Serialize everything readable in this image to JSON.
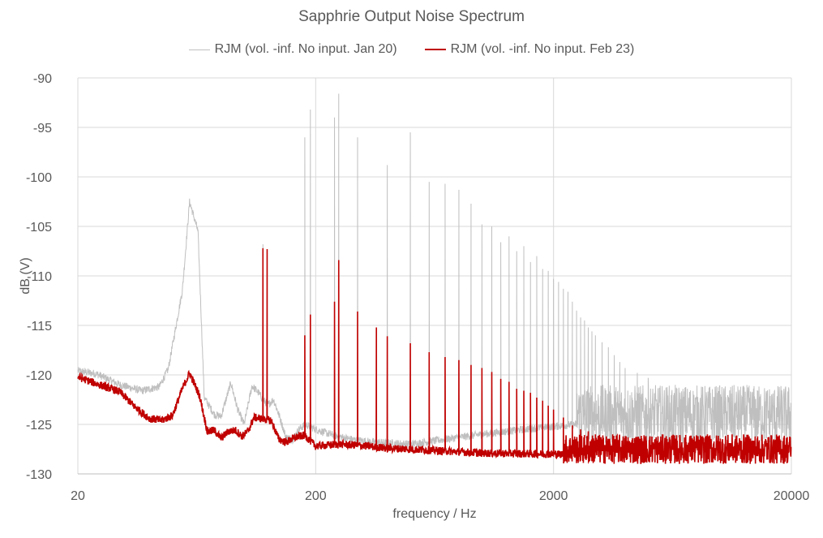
{
  "chart_data": {
    "type": "line",
    "title": "Sapphrie Output Noise Spectrum",
    "xlabel": "frequency / Hz",
    "ylabel": "dB (V)",
    "x_scale": "log",
    "xlim": [
      20,
      20000
    ],
    "ylim": [
      -130,
      -90
    ],
    "x_ticks": [
      20,
      200,
      2000,
      20000
    ],
    "y_ticks": [
      -90,
      -95,
      -100,
      -105,
      -110,
      -115,
      -120,
      -125,
      -130
    ],
    "grid": true,
    "legend_position": "top",
    "series": [
      {
        "name": "RJM (vol. -inf. No input. Jan 20)",
        "color": "#bfbfbf",
        "baseline": [
          [
            20,
            -119.6
          ],
          [
            24,
            -119.9
          ],
          [
            30,
            -121
          ],
          [
            37,
            -121.6
          ],
          [
            44,
            -121.2
          ],
          [
            48,
            -119.4
          ],
          [
            55,
            -111.5
          ],
          [
            59,
            -102.5
          ],
          [
            64,
            -105.5
          ],
          [
            68,
            -122.3
          ],
          [
            75,
            -124
          ],
          [
            80,
            -124.2
          ],
          [
            88,
            -120.8
          ],
          [
            94,
            -123.5
          ],
          [
            100,
            -125
          ],
          [
            108,
            -121.1
          ],
          [
            115,
            -121.8
          ],
          [
            120,
            -122.5
          ],
          [
            126,
            -123
          ],
          [
            133,
            -122.5
          ],
          [
            140,
            -124
          ],
          [
            150,
            -126.3
          ],
          [
            160,
            -126.5
          ],
          [
            170,
            -125.5
          ],
          [
            181,
            -125
          ],
          [
            200,
            -125.5
          ],
          [
            230,
            -126
          ],
          [
            280,
            -126.5
          ],
          [
            350,
            -126.8
          ],
          [
            500,
            -127
          ],
          [
            700,
            -126.5
          ],
          [
            1000,
            -126
          ],
          [
            1500,
            -125.5
          ],
          [
            2500,
            -125
          ],
          [
            20000,
            -125
          ]
        ],
        "noise_floor": {
          "start_freq": 2500,
          "low": -127,
          "high": -121
        },
        "peaks": [
          [
            120,
            -106.8
          ],
          [
            180,
            -96
          ],
          [
            190,
            -93.2
          ],
          [
            240,
            -94
          ],
          [
            250,
            -91.6
          ],
          [
            300,
            -96
          ],
          [
            400,
            -98.8
          ],
          [
            500,
            -95.5
          ],
          [
            600,
            -100.5
          ],
          [
            700,
            -100.7
          ],
          [
            800,
            -101.3
          ],
          [
            900,
            -102.7
          ],
          [
            1000,
            -104.8
          ],
          [
            1100,
            -105
          ],
          [
            1200,
            -106.6
          ],
          [
            1300,
            -106
          ],
          [
            1400,
            -107.5
          ],
          [
            1500,
            -107
          ],
          [
            1600,
            -108.6
          ],
          [
            1700,
            -108
          ],
          [
            1800,
            -109.3
          ],
          [
            1900,
            -109.5
          ],
          [
            2000,
            -110.3
          ],
          [
            2100,
            -110.6
          ],
          [
            2200,
            -111.3
          ],
          [
            2300,
            -111.6
          ],
          [
            2400,
            -112.6
          ],
          [
            2500,
            -113.5
          ],
          [
            2600,
            -114.2
          ],
          [
            2700,
            -114.5
          ],
          [
            2800,
            -115.2
          ],
          [
            2900,
            -115.6
          ],
          [
            3000,
            -116
          ],
          [
            3200,
            -116.7
          ],
          [
            3400,
            -117.2
          ],
          [
            3600,
            -118
          ],
          [
            3800,
            -118.7
          ],
          [
            4000,
            -119.3
          ],
          [
            4500,
            -119.8
          ],
          [
            5000,
            -120.3
          ]
        ]
      },
      {
        "name": "RJM (vol. -inf. No input. Feb 23)",
        "color": "#c00000",
        "baseline": [
          [
            20,
            -120.2
          ],
          [
            24,
            -120.9
          ],
          [
            30,
            -121.7
          ],
          [
            35,
            -123.3
          ],
          [
            40,
            -124.4
          ],
          [
            45,
            -124.6
          ],
          [
            50,
            -124.1
          ],
          [
            55,
            -121.4
          ],
          [
            59,
            -119.8
          ],
          [
            65,
            -122.1
          ],
          [
            70,
            -125.7
          ],
          [
            75,
            -125.6
          ],
          [
            80,
            -126.4
          ],
          [
            86,
            -125.7
          ],
          [
            92,
            -125.6
          ],
          [
            98,
            -126.2
          ],
          [
            104,
            -125.7
          ],
          [
            110,
            -124.3
          ],
          [
            130,
            -124.6
          ],
          [
            140,
            -126.5
          ],
          [
            150,
            -126.8
          ],
          [
            165,
            -126.3
          ],
          [
            180,
            -126.1
          ],
          [
            200,
            -127.2
          ],
          [
            250,
            -127
          ],
          [
            300,
            -127.1
          ],
          [
            400,
            -127.4
          ],
          [
            600,
            -127.6
          ],
          [
            1000,
            -127.9
          ],
          [
            2000,
            -128
          ],
          [
            5000,
            -128.1
          ],
          [
            20000,
            -128
          ]
        ],
        "noise_floor": {
          "start_freq": 2200,
          "low": -129,
          "high": -126
        },
        "peaks": [
          [
            120,
            -107.2
          ],
          [
            125,
            -107.3
          ],
          [
            180,
            -116
          ],
          [
            190,
            -113.9
          ],
          [
            240,
            -112.6
          ],
          [
            250,
            -108.4
          ],
          [
            300,
            -113.6
          ],
          [
            360,
            -115.2
          ],
          [
            400,
            -116.1
          ],
          [
            500,
            -116.8
          ],
          [
            600,
            -117.7
          ],
          [
            700,
            -118.2
          ],
          [
            800,
            -118.5
          ],
          [
            900,
            -119
          ],
          [
            1000,
            -119.3
          ],
          [
            1100,
            -119.7
          ],
          [
            1200,
            -120.4
          ],
          [
            1300,
            -120.7
          ],
          [
            1400,
            -121.4
          ],
          [
            1500,
            -121.6
          ],
          [
            1600,
            -121.8
          ],
          [
            1700,
            -122.3
          ],
          [
            1800,
            -122.6
          ],
          [
            1900,
            -123.1
          ],
          [
            2000,
            -123.5
          ],
          [
            2200,
            -124.3
          ],
          [
            2400,
            -125.1
          ],
          [
            2600,
            -125.5
          ],
          [
            2800,
            -125.7
          ],
          [
            3000,
            -126
          ]
        ]
      }
    ]
  }
}
